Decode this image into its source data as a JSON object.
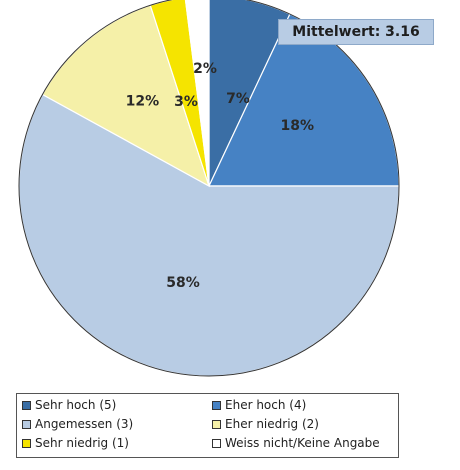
{
  "chart_data": {
    "type": "pie",
    "slices": [
      {
        "label": "Sehr hoch (5)",
        "value": 7,
        "color": "#3a6ea5",
        "text": "7%"
      },
      {
        "label": "Eher hoch (4)",
        "value": 18,
        "color": "#4682c4",
        "text": "18%"
      },
      {
        "label": "Angemessen (3)",
        "value": 58,
        "color": "#b8cce4",
        "text": "58%"
      },
      {
        "label": "Eher niedrig (2)",
        "value": 12,
        "color": "#f5f0a8",
        "text": "12%"
      },
      {
        "label": "Sehr niedrig (1)",
        "value": 3,
        "color": "#f5e400",
        "text": "3%"
      },
      {
        "label": "Weiss nicht/Keine Angabe",
        "value": 2,
        "color": "#ffffff",
        "text": "2%"
      }
    ],
    "annotation": "Mittelwert: 3.16",
    "legend_position": "bottom"
  }
}
